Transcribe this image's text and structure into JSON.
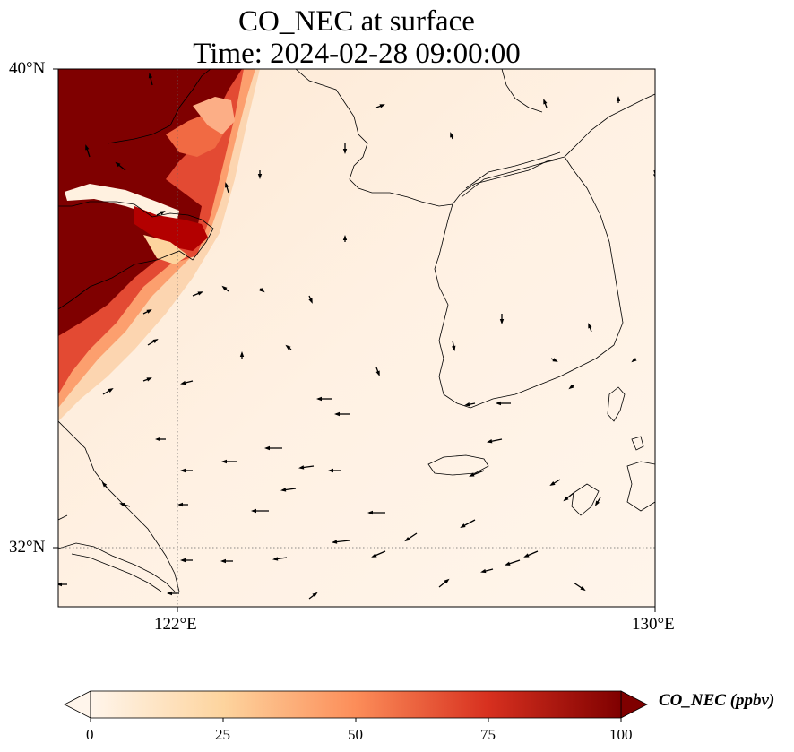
{
  "title": {
    "line1": "CO_NEC at surface",
    "line2": "Time: 2024-02-28 09:00:00"
  },
  "axes": {
    "lat_labels": [
      "40°N",
      "32°N"
    ],
    "lon_labels": [
      "122°E",
      "130°E"
    ],
    "lat_range": [
      31,
      40
    ],
    "lon_range": [
      120,
      130
    ],
    "gridlines": {
      "lat": [
        32
      ],
      "lon": [
        122
      ],
      "style": "dotted"
    }
  },
  "colorbar": {
    "label": "CO_NEC (ppbv)",
    "ticks": [
      "0",
      "25",
      "50",
      "75",
      "100"
    ],
    "range": [
      0,
      100
    ],
    "extend": "both",
    "colormap": [
      "#fff5eb",
      "#fdd49e",
      "#fc8d59",
      "#d7301f",
      "#7f0000"
    ]
  },
  "colors": {
    "high": "#7f0000",
    "low": "#fff5eb",
    "coastline": "#000000"
  },
  "field": {
    "variable": "CO_NEC",
    "level": "surface",
    "description_of_pattern": "",
    "high_region": "northwest"
  }
}
